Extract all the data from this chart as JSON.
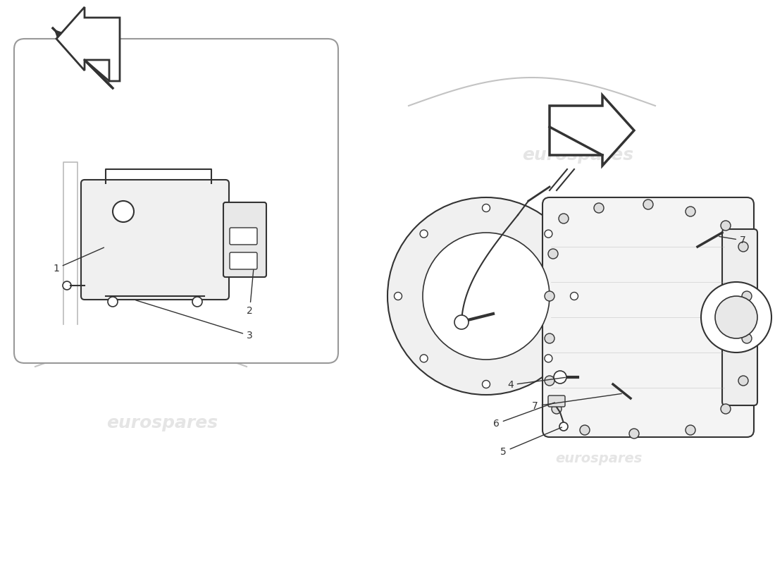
{
  "bg_color": "#ffffff",
  "watermark_color": "#d0d0d0",
  "watermark_text": "eurospares",
  "line_color": "#333333",
  "light_line_color": "#aaaaaa",
  "arrow_color": "#222222",
  "box_border_color": "#888888",
  "box_fill_color": "#f8f8f8",
  "title": "",
  "part_labels": [
    "1",
    "2",
    "3",
    "4",
    "5",
    "6",
    "7"
  ],
  "figsize": [
    11.0,
    8.0
  ],
  "dpi": 100
}
